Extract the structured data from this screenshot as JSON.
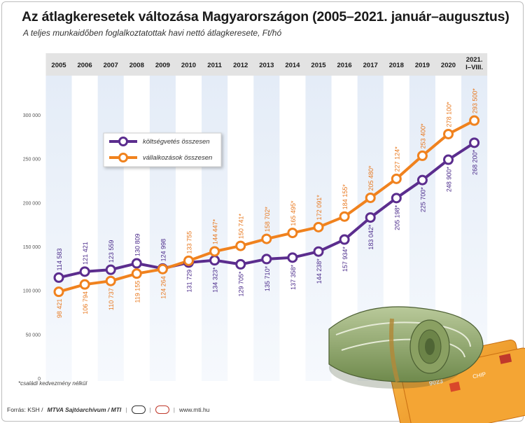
{
  "header": {
    "title": "Az átlagkeresetek változása Magyarországon (2005–2021. január–augusztus)",
    "subtitle": "A teljes munkaidőben foglalkoztatottak havi nettó átlagkeresete, Ft/hó"
  },
  "chart_data": {
    "type": "line",
    "categories": [
      "2005",
      "2006",
      "2007",
      "2008",
      "2009",
      "2010",
      "2011",
      "2012",
      "2013",
      "2014",
      "2015",
      "2016",
      "2017",
      "2018",
      "2019",
      "2020",
      "2021.|I–VIII."
    ],
    "ylim": [
      0,
      320000
    ],
    "yticks": [
      0,
      50000,
      100000,
      150000,
      200000,
      250000,
      300000
    ],
    "ytick_labels": [
      "0",
      "50 000",
      "100 000",
      "150 000",
      "200 000",
      "250 000",
      "300 000"
    ],
    "grid": false,
    "legend_position": "top-left",
    "series": [
      {
        "name": "költségvetés összesen",
        "color": "#5b2d8e",
        "values": [
          114583,
          121421,
          123559,
          130809,
          124998,
          131729,
          134323,
          129705,
          135710,
          137358,
          144238,
          157934,
          183042,
          205198,
          225700,
          248900,
          268200
        ],
        "labels": [
          "114 583",
          "121 421",
          "123 559",
          "130 809",
          "124 998",
          "131 729",
          "134 323*",
          "129 705*",
          "135 710*",
          "137 358*",
          "144 238*",
          "157 934*",
          "183 042*",
          "205 198*",
          "225 700*",
          "248 900*",
          "268 200*"
        ]
      },
      {
        "name": "vállalkozások összesen",
        "color": "#f0821e",
        "values": [
          98421,
          106794,
          110737,
          119155,
          124264,
          133755,
          144447,
          150741,
          158702,
          165495,
          172091,
          184155,
          205480,
          227124,
          253400,
          278100,
          293500
        ],
        "labels": [
          "98 421",
          "106 794",
          "110 737",
          "119 155",
          "124 264",
          "133 755",
          "144 447*",
          "150 741*",
          "158 702*",
          "165 495*",
          "172 091*",
          "184 155*",
          "205 480*",
          "227 124*",
          "253 400*",
          "278 100*",
          "293 500*"
        ]
      }
    ]
  },
  "footnote": "*családi kedvezmény nélkül",
  "footer": {
    "source": "Forrás: KSH /",
    "agency": "MTVA Sajtóarchívum / MTI",
    "site": "www.mti.hu"
  },
  "illustration": {
    "name": "money-roll-and-cards-illustration",
    "card_number": "9023",
    "card_chip_text": "CHIP"
  }
}
